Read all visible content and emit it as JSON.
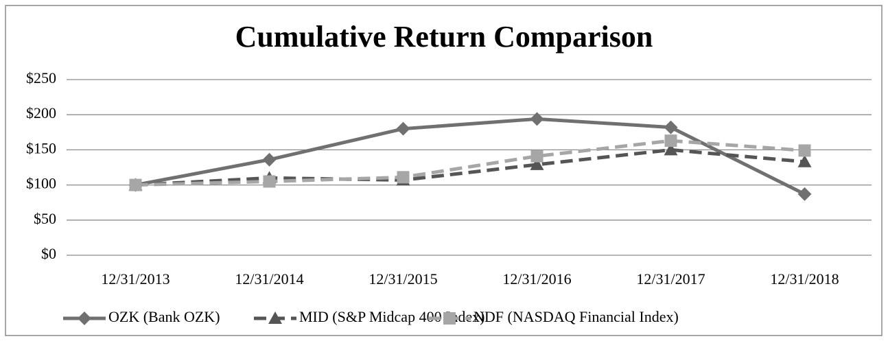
{
  "chart_data": {
    "type": "line",
    "title": "Cumulative Return Comparison",
    "categories": [
      "12/31/2013",
      "12/31/2014",
      "12/31/2015",
      "12/31/2016",
      "12/31/2017",
      "12/31/2018"
    ],
    "series": [
      {
        "name": "OZK (Bank OZK)",
        "color": "#707070",
        "marker": "diamond",
        "dash": "solid",
        "values": [
          100,
          136,
          180,
          194,
          182,
          87
        ]
      },
      {
        "name": "MID (S&P Midcap 400 Index)",
        "color": "#555555",
        "marker": "triangle",
        "dash": "dashed",
        "values": [
          100,
          110,
          107,
          129,
          150,
          133
        ]
      },
      {
        "name": "NDF (NASDAQ Financial Index)",
        "color": "#a6a6a6",
        "marker": "square",
        "dash": "dashed",
        "values": [
          100,
          105,
          111,
          141,
          163,
          149
        ]
      }
    ],
    "ylim": [
      0,
      250
    ],
    "yticks": [
      {
        "value": 0,
        "label": "$0"
      },
      {
        "value": 50,
        "label": "$50"
      },
      {
        "value": 100,
        "label": "$100"
      },
      {
        "value": 150,
        "label": "$150"
      },
      {
        "value": 200,
        "label": "$200"
      },
      {
        "value": 250,
        "label": "$250"
      }
    ],
    "grid": true,
    "legend": "bottom"
  }
}
